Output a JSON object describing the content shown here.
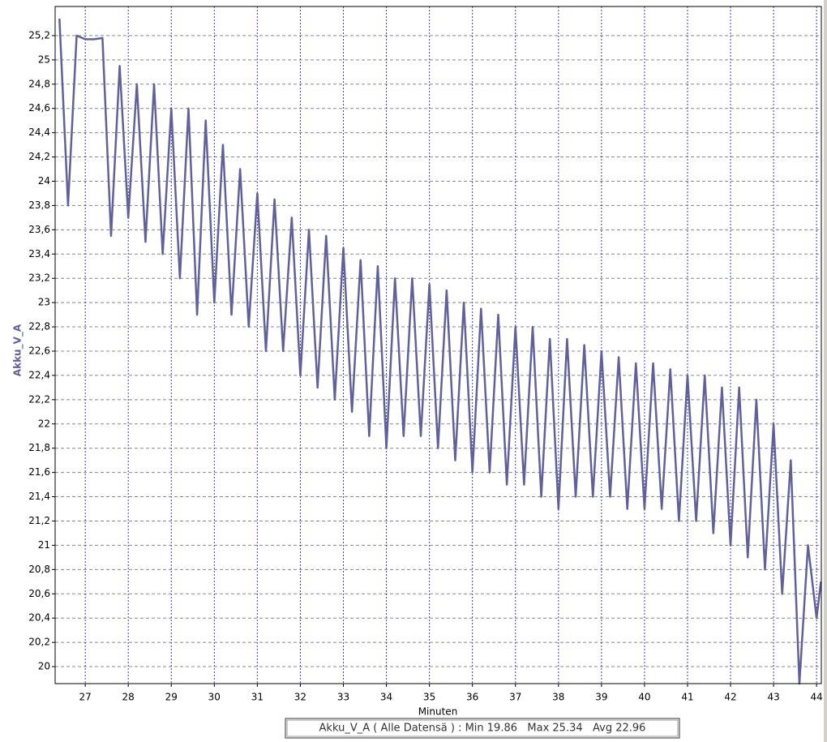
{
  "chart_data": {
    "type": "line",
    "y_label": "Akku_V_A",
    "x_label": "Minuten",
    "summary": "Akku_V_A ( Alle Datensä ) : Min 19.86   Max 25.34   Avg 22.96",
    "xlim": [
      26.3,
      44.11
    ],
    "ylim": [
      19.86,
      25.44
    ],
    "xticks": [
      27,
      28,
      29,
      30,
      31,
      32,
      33,
      34,
      35,
      36,
      37,
      38,
      39,
      40,
      41,
      42,
      43,
      44
    ],
    "yticks": [
      {
        "value": 20,
        "label": "20"
      },
      {
        "value": 20.2,
        "label": "20,2"
      },
      {
        "value": 20.4,
        "label": "20,4"
      },
      {
        "value": 20.6,
        "label": "20,6"
      },
      {
        "value": 20.8,
        "label": "20,8"
      },
      {
        "value": 21,
        "label": "21"
      },
      {
        "value": 21.2,
        "label": "21,2"
      },
      {
        "value": 21.4,
        "label": "21,4"
      },
      {
        "value": 21.6,
        "label": "21,6"
      },
      {
        "value": 21.8,
        "label": "21,8"
      },
      {
        "value": 22,
        "label": "22"
      },
      {
        "value": 22.2,
        "label": "22,2"
      },
      {
        "value": 22.4,
        "label": "22,4"
      },
      {
        "value": 22.6,
        "label": "22,6"
      },
      {
        "value": 22.8,
        "label": "22,8"
      },
      {
        "value": 23,
        "label": "23"
      },
      {
        "value": 23.2,
        "label": "23,2"
      },
      {
        "value": 23.4,
        "label": "23,4"
      },
      {
        "value": 23.6,
        "label": "23,6"
      },
      {
        "value": 23.8,
        "label": "23,8"
      },
      {
        "value": 24,
        "label": "24"
      },
      {
        "value": 24.2,
        "label": "24,2"
      },
      {
        "value": 24.4,
        "label": "24,4"
      },
      {
        "value": 24.6,
        "label": "24,6"
      },
      {
        "value": 24.8,
        "label": "24,8"
      },
      {
        "value": 25,
        "label": "25"
      },
      {
        "value": 25.2,
        "label": "25,2"
      }
    ],
    "grid": true,
    "series": [
      {
        "name": "Akku_V_A",
        "color": "#62609a",
        "x": [
          26.4,
          26.6,
          26.8,
          27.0,
          27.2,
          27.4,
          27.6,
          27.8,
          28.0,
          28.2,
          28.4,
          28.6,
          28.8,
          29.0,
          29.2,
          29.4,
          29.6,
          29.8,
          30.0,
          30.2,
          30.4,
          30.6,
          30.8,
          31.0,
          31.2,
          31.4,
          31.6,
          31.8,
          32.0,
          32.2,
          32.4,
          32.6,
          32.8,
          33.0,
          33.2,
          33.4,
          33.6,
          33.8,
          34.0,
          34.2,
          34.4,
          34.6,
          34.8,
          35.0,
          35.2,
          35.4,
          35.6,
          35.8,
          36.0,
          36.2,
          36.4,
          36.6,
          36.8,
          37.0,
          37.2,
          37.4,
          37.6,
          37.8,
          38.0,
          38.2,
          38.4,
          38.6,
          38.8,
          39.0,
          39.2,
          39.4,
          39.6,
          39.8,
          40.0,
          40.2,
          40.4,
          40.6,
          40.8,
          41.0,
          41.2,
          41.4,
          41.6,
          41.8,
          42.0,
          42.2,
          42.4,
          42.6,
          42.8,
          43.0,
          43.2,
          43.4,
          43.6,
          43.8,
          44.0,
          44.1
        ],
        "values": [
          25.34,
          23.8,
          25.2,
          25.17,
          25.17,
          25.18,
          23.55,
          24.95,
          23.7,
          24.8,
          23.5,
          24.8,
          23.4,
          24.6,
          23.2,
          24.6,
          22.9,
          24.5,
          23.0,
          24.3,
          22.9,
          24.1,
          22.8,
          23.9,
          22.6,
          23.85,
          22.6,
          23.7,
          22.4,
          23.6,
          22.3,
          23.55,
          22.2,
          23.45,
          22.1,
          23.35,
          21.9,
          23.3,
          21.8,
          23.2,
          21.9,
          23.2,
          21.9,
          23.15,
          21.8,
          23.1,
          21.7,
          23.0,
          21.6,
          22.95,
          21.6,
          22.9,
          21.5,
          22.8,
          21.5,
          22.8,
          21.4,
          22.7,
          21.3,
          22.7,
          21.4,
          22.65,
          21.4,
          22.6,
          21.4,
          22.55,
          21.3,
          22.5,
          21.3,
          22.5,
          21.3,
          22.45,
          21.2,
          22.4,
          21.2,
          22.4,
          21.1,
          22.3,
          21.0,
          22.3,
          20.9,
          22.2,
          20.8,
          22.0,
          20.6,
          21.7,
          19.86,
          21.0,
          20.4,
          20.7
        ]
      }
    ]
  }
}
